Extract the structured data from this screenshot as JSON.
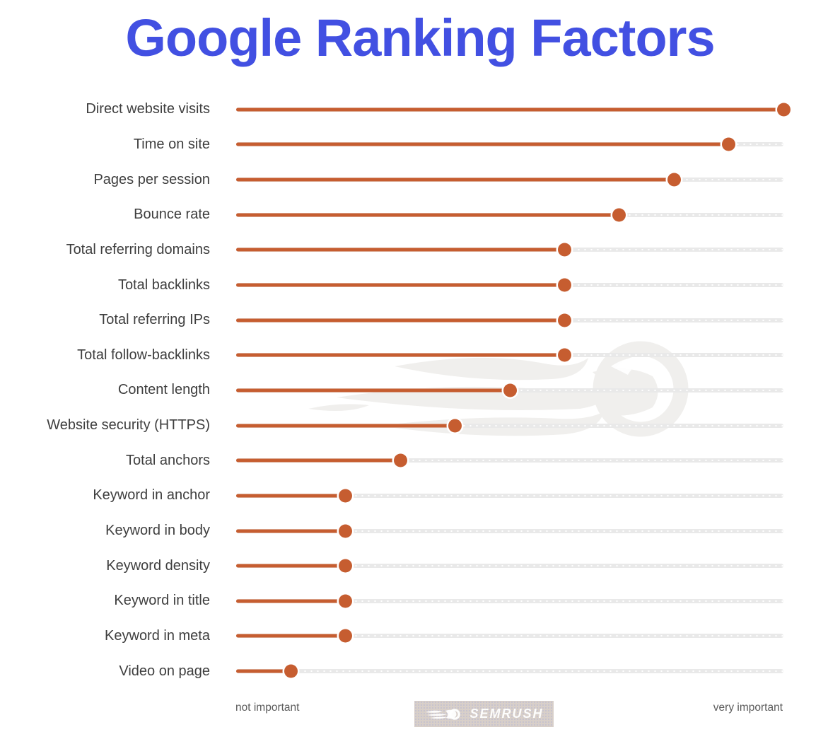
{
  "title": {
    "text": "Google Ranking Factors"
  },
  "colors": {
    "title": "#4250e2",
    "accent": "#c65d30",
    "track": "#e9e9e9",
    "row_label": "#3e3e3e",
    "footer_label": "#5c5c5c",
    "watermark": "#f0efed",
    "badge_background": "#d8cfc9",
    "badge_text": "#ffffff"
  },
  "footer": {
    "min_label": "not important",
    "max_label": "very important",
    "brand": "SEMRUSH"
  },
  "chart_data": {
    "type": "bar",
    "subtype": "lollipop",
    "orientation": "horizontal",
    "title": "Google Ranking Factors",
    "xlabel": "importance (not important → very important)",
    "ylabel": "",
    "xlim": [
      0,
      1
    ],
    "grid": false,
    "legend": false,
    "categories": [
      "Direct website visits",
      "Time on site",
      "Pages per session",
      "Bounce rate",
      "Total referring domains",
      "Total backlinks",
      "Total referring IPs",
      "Total follow-backlinks",
      "Content length",
      "Website security (HTTPS)",
      "Total anchors",
      "Keyword in anchor",
      "Keyword in body",
      "Keyword density",
      "Keyword in title",
      "Keyword in meta",
      "Video on page"
    ],
    "values": [
      1.0,
      0.9,
      0.8,
      0.7,
      0.6,
      0.6,
      0.6,
      0.6,
      0.5,
      0.4,
      0.3,
      0.2,
      0.2,
      0.2,
      0.2,
      0.2,
      0.1
    ]
  }
}
